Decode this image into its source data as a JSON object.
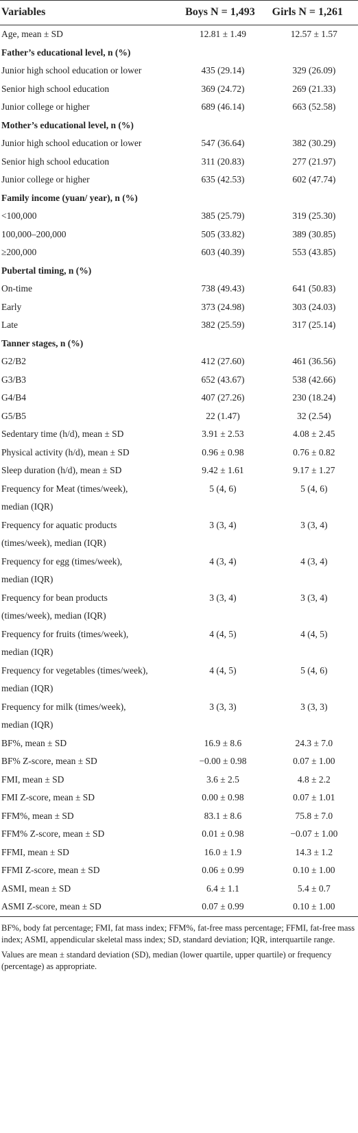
{
  "table": {
    "header": [
      "Variables",
      "Boys N = 1,493",
      "Girls N = 1,261"
    ],
    "rows": [
      [
        "Age, mean ± SD",
        "12.81 ± 1.49",
        "12.57 ± 1.57"
      ],
      [
        "Father’s educational level, n (%)"
      ],
      [
        "Junior high school education or lower",
        "435 (29.14)",
        "329 (26.09)"
      ],
      [
        "Senior high school education",
        "369 (24.72)",
        "269 (21.33)"
      ],
      [
        "Junior college or higher",
        "689 (46.14)",
        "663 (52.58)"
      ],
      [
        "Mother’s educational level, n (%)"
      ],
      [
        "Junior high school education or lower",
        "547 (36.64)",
        "382 (30.29)"
      ],
      [
        "Senior high school education",
        "311 (20.83)",
        "277 (21.97)"
      ],
      [
        "Junior college or higher",
        "635 (42.53)",
        "602 (47.74)"
      ],
      [
        "Family income (yuan/ year), n (%)"
      ],
      [
        "<100,000",
        "385 (25.79)",
        "319 (25.30)"
      ],
      [
        "100,000–200,000",
        "505 (33.82)",
        "389 (30.85)"
      ],
      [
        "≥200,000",
        "603 (40.39)",
        "553 (43.85)"
      ],
      [
        "Pubertal timing, n (%)"
      ],
      [
        "On-time",
        "738 (49.43)",
        "641 (50.83)"
      ],
      [
        "Early",
        "373 (24.98)",
        "303 (24.03)"
      ],
      [
        "Late",
        "382 (25.59)",
        "317 (25.14)"
      ],
      [
        "Tanner stages, n (%)"
      ],
      [
        "G2/B2",
        "412 (27.60)",
        "461 (36.56)"
      ],
      [
        "G3/B3",
        "652 (43.67)",
        "538 (42.66)"
      ],
      [
        "G4/B4",
        "407 (27.26)",
        "230 (18.24)"
      ],
      [
        "G5/B5",
        "22 (1.47)",
        "32 (2.54)"
      ],
      [
        "Sedentary time (h/d), mean ± SD",
        "3.91 ± 2.53",
        "4.08 ± 2.45"
      ],
      [
        "Physical activity (h/d), mean ± SD",
        "0.96 ± 0.98",
        "0.76 ± 0.82"
      ],
      [
        "Sleep duration (h/d), mean ± SD",
        "9.42 ± 1.61",
        "9.17 ± 1.27"
      ],
      [
        "Frequency for Meat (times/week), median (IQR)",
        "5 (4, 6)",
        "5 (4, 6)"
      ],
      [
        "Frequency for aquatic products (times/week), median (IQR)",
        "3 (3, 4)",
        "3 (3, 4)"
      ],
      [
        "Frequency for egg (times/week), median (IQR)",
        "4 (3, 4)",
        "4 (3, 4)"
      ],
      [
        "Frequency for bean products (times/week), median (IQR)",
        "3 (3, 4)",
        "3 (3, 4)"
      ],
      [
        "Frequency for fruits (times/week), median (IQR)",
        "4 (4, 5)",
        "4 (4, 5)"
      ],
      [
        "Frequency for vegetables (times/week), median (IQR)",
        "4 (4, 5)",
        "5 (4, 6)"
      ],
      [
        "Frequency for milk (times/week), median (IQR)",
        "3 (3, 3)",
        "3 (3, 3)"
      ],
      [
        "BF%, mean ± SD",
        "16.9 ± 8.6",
        "24.3 ± 7.0"
      ],
      [
        "BF% Z-score, mean ± SD",
        "−0.00 ± 0.98",
        "0.07 ± 1.00"
      ],
      [
        "FMI, mean ± SD",
        "3.6 ± 2.5",
        "4.8 ± 2.2"
      ],
      [
        "FMI Z-score, mean ± SD",
        "0.00 ± 0.98",
        "0.07 ± 1.01"
      ],
      [
        "FFM%, mean ± SD",
        "83.1 ± 8.6",
        "75.8 ± 7.0"
      ],
      [
        "FFM% Z-score, mean ± SD",
        "0.01 ± 0.98",
        "−0.07 ± 1.00"
      ],
      [
        "FFMI, mean ± SD",
        "16.0 ± 1.9",
        "14.3 ± 1.2"
      ],
      [
        "FFMI Z-score, mean ± SD",
        "0.06 ± 0.99",
        "0.10 ± 1.00"
      ],
      [
        "ASMI, mean ± SD",
        "6.4 ± 1.1",
        "5.4 ± 0.7"
      ],
      [
        "ASMI Z-score, mean ± SD",
        "0.07 ± 0.99",
        "0.10 ± 1.00"
      ]
    ],
    "notes": [
      "BF%, body fat percentage; FMI, fat mass index; FFM%, fat-free mass percentage; FFMI, fat-free mass index; ASMI, appendicular skeletal mass index; SD, standard deviation; IQR, interquartile range.",
      "Values are mean ± standard deviation (SD), median (lower quartile, upper quartile) or frequency (percentage) as appropriate."
    ]
  }
}
